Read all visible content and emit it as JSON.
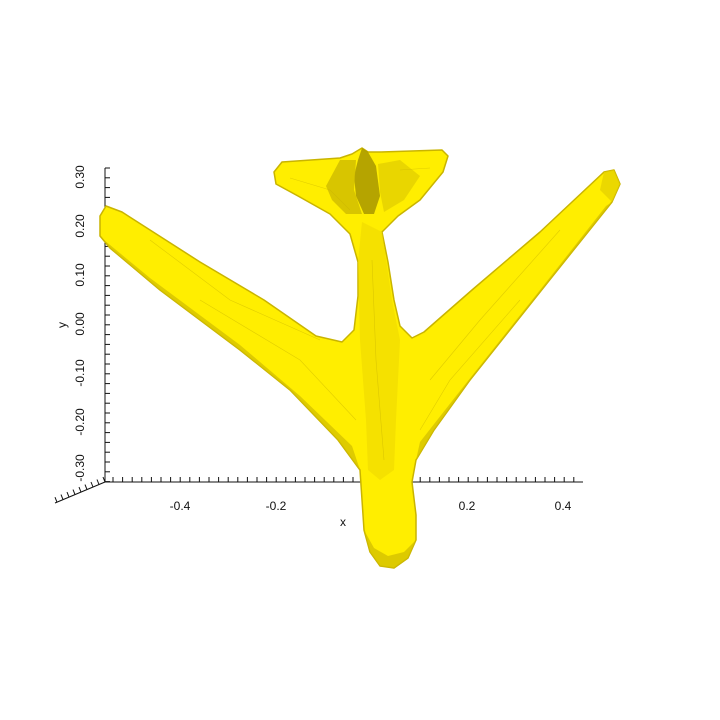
{
  "scene": {
    "model_color": "#ffee00",
    "shade_color": "#d8c400",
    "dark_color": "#8a7a00",
    "axis_color": "#111111"
  },
  "axes": {
    "x": {
      "title": "x",
      "tick_labels": [
        "-0.4",
        "-0.2",
        "0.2",
        "0.4"
      ]
    },
    "y": {
      "title": "y",
      "tick_labels": [
        "0.30",
        "0.20",
        "0.10",
        "0.00",
        "-0.10",
        "-0.20",
        "-0.30"
      ]
    }
  }
}
